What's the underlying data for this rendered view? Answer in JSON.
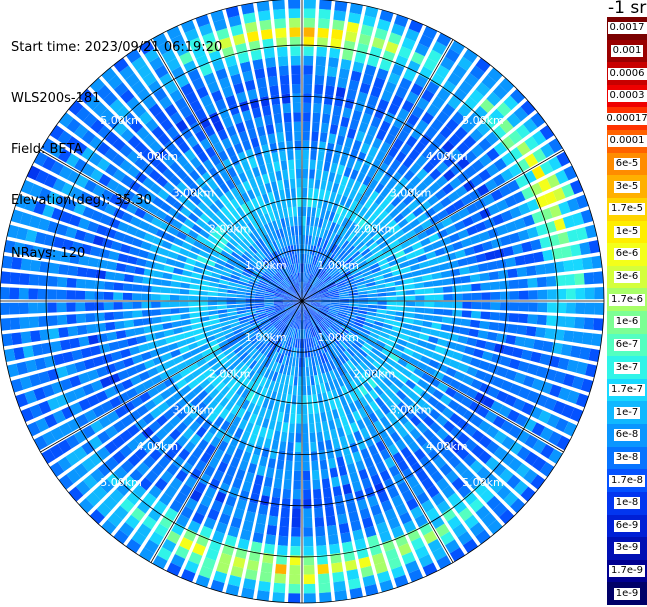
{
  "info": {
    "start_time": "Start time: 2023/09/21 06:19:20",
    "device": "WLS200s-181",
    "field": "Field: BETA",
    "elevation": "Elevation(deg): 35.30",
    "nrays": "NRays: 120"
  },
  "colorbar": {
    "unit": "-1 sr",
    "ticks": [
      "0.0017",
      "0.001",
      "0.0006",
      "0.0003",
      "0.00017",
      "0.0001",
      "6e-5",
      "3e-5",
      "1.7e-5",
      "1e-5",
      "6e-6",
      "3e-6",
      "1.7e-6",
      "1e-6",
      "6e-7",
      "3e-7",
      "1.7e-7",
      "1e-7",
      "6e-8",
      "3e-8",
      "1.7e-8",
      "1e-8",
      "6e-9",
      "3e-9",
      "1.7e-9",
      "1e-9"
    ],
    "colors": [
      "#7a0000",
      "#9a0000",
      "#c80000",
      "#ee0000",
      "#ff3200",
      "#ff6200",
      "#ff8c00",
      "#ffb000",
      "#ffd400",
      "#ffee00",
      "#f4ff1a",
      "#d4ff3c",
      "#a8ff68",
      "#7cff94",
      "#54ffc0",
      "#30f4e8",
      "#18d8ff",
      "#10b8ff",
      "#0a96ff",
      "#0674ff",
      "#0452ff",
      "#0236f0",
      "#0020d6",
      "#0010b4",
      "#000090",
      "#000068"
    ]
  },
  "chart_data": {
    "type": "heatmap",
    "projection": "polar-ppi",
    "nrays": 120,
    "elevation_deg": 35.3,
    "range_rings_km": [
      1.0,
      2.0,
      3.0,
      4.0,
      5.0
    ],
    "ring_labels": [
      "1.00km",
      "2.00km",
      "3.00km",
      "4.00km",
      "5.00km"
    ],
    "max_range_km": 5.9,
    "radial_profile_log10": [
      {
        "range_km": 0.0,
        "value": -7.7
      },
      {
        "range_km": 1.0,
        "value": -7.4
      },
      {
        "range_km": 2.0,
        "value": -6.85
      },
      {
        "range_km": 3.0,
        "value": -7.2
      },
      {
        "range_km": 4.0,
        "value": -7.55
      },
      {
        "range_km": 5.0,
        "value": -7.3
      },
      {
        "range_km": 5.9,
        "value": -7.5
      }
    ],
    "aerosol_ring": {
      "range_km": 5.25,
      "peak_log10": -4.5,
      "sectors": [
        "north",
        "south",
        "east"
      ]
    }
  }
}
